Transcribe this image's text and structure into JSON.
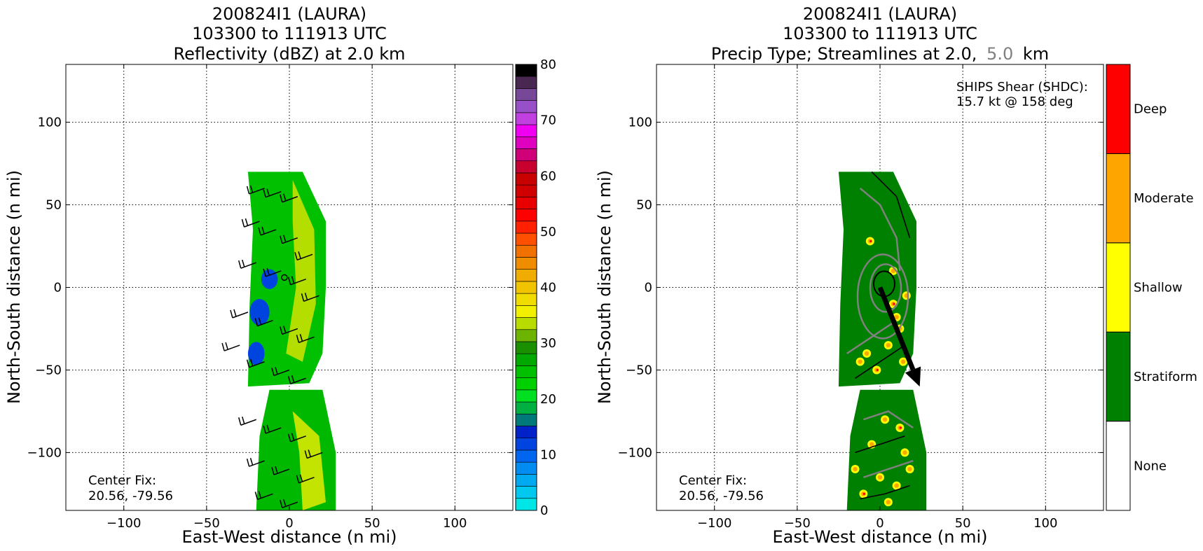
{
  "chart_data": [
    {
      "type": "heatmap",
      "title": [
        "200824I1 (LAURA)",
        "103300 to 111913 UTC",
        "Reflectivity (dBZ) at 2.0 km"
      ],
      "xlabel": "East-West distance (n mi)",
      "ylabel": "North-South distance (n mi)",
      "xlim": [
        -135,
        135
      ],
      "ylim": [
        -135,
        135
      ],
      "xticks": [
        -100,
        -50,
        0,
        50,
        100
      ],
      "yticks": [
        -100,
        -50,
        0,
        50,
        100
      ],
      "grid": true,
      "annotation": [
        "Center Fix:",
        "20.56, -79.56"
      ],
      "colorbar": {
        "label": "dBZ",
        "range": [
          0,
          80
        ],
        "ticks": [
          0,
          10,
          20,
          30,
          40,
          50,
          60,
          70,
          80
        ],
        "colors": [
          "#00e5e5",
          "#00c8ef",
          "#00aaf0",
          "#008cf0",
          "#0066f0",
          "#0044e0",
          "#0022c8",
          "#007a78",
          "#00b040",
          "#00e020",
          "#00d000",
          "#00c000",
          "#00a800",
          "#1a9000",
          "#6cb400",
          "#b8dc00",
          "#f0f000",
          "#f0dc00",
          "#f0c400",
          "#f0ac00",
          "#f08c00",
          "#f07000",
          "#ff5000",
          "#ff2000",
          "#ff0000",
          "#e80000",
          "#d00000",
          "#c80000",
          "#c80030",
          "#d00078",
          "#e000c0",
          "#f000f0",
          "#c040e0",
          "#9850c8",
          "#784898",
          "#482850",
          "#000000"
        ]
      },
      "echo": {
        "north_band": [
          [
            -25,
            70
          ],
          [
            8,
            70
          ],
          [
            22,
            40
          ],
          [
            22,
            0
          ],
          [
            20,
            -40
          ],
          [
            12,
            -58
          ],
          [
            -25,
            -60
          ],
          [
            -24,
            -10
          ],
          [
            -22,
            35
          ]
        ],
        "south_band": [
          [
            -12,
            -62
          ],
          [
            20,
            -62
          ],
          [
            28,
            -100
          ],
          [
            28,
            -135
          ],
          [
            -20,
            -135
          ],
          [
            -18,
            -90
          ]
        ],
        "yellow_core": [
          [
            2,
            65
          ],
          [
            15,
            35
          ],
          [
            16,
            -10
          ],
          [
            8,
            -45
          ],
          [
            -2,
            -40
          ],
          [
            4,
            0
          ],
          [
            2,
            40
          ]
        ],
        "yellow_south": [
          [
            2,
            -75
          ],
          [
            18,
            -90
          ],
          [
            22,
            -130
          ],
          [
            8,
            -135
          ],
          [
            6,
            -100
          ]
        ],
        "blue_patches": [
          [
            -18,
            -15,
            6,
            8
          ],
          [
            -12,
            5,
            5,
            6
          ],
          [
            -20,
            -40,
            5,
            7
          ]
        ]
      },
      "wind_barbs": [
        [
          -15,
          60
        ],
        [
          -5,
          58
        ],
        [
          5,
          55
        ],
        [
          -18,
          40
        ],
        [
          -8,
          35
        ],
        [
          5,
          30
        ],
        [
          14,
          20
        ],
        [
          -20,
          15
        ],
        [
          -5,
          10
        ],
        [
          10,
          5
        ],
        [
          18,
          -5
        ],
        [
          -25,
          -15
        ],
        [
          -10,
          -20
        ],
        [
          5,
          -25
        ],
        [
          15,
          -30
        ],
        [
          -30,
          -35
        ],
        [
          -15,
          -45
        ],
        [
          0,
          -50
        ],
        [
          10,
          -55
        ],
        [
          -20,
          -80
        ],
        [
          -5,
          -85
        ],
        [
          10,
          -90
        ],
        [
          20,
          -100
        ],
        [
          -15,
          -105
        ],
        [
          0,
          -110
        ],
        [
          15,
          -115
        ],
        [
          -10,
          -125
        ],
        [
          5,
          -130
        ]
      ],
      "center_marker": [
        -3,
        6
      ]
    },
    {
      "type": "heatmap",
      "title": [
        "200824I1 (LAURA)",
        "103300 to 111913 UTC",
        "Precip Type; Streamlines at 2.0,",
        "5.0",
        "km"
      ],
      "xlabel": "East-West distance (n mi)",
      "ylabel": "North-South distance (n mi)",
      "xlim": [
        -135,
        135
      ],
      "ylim": [
        -135,
        135
      ],
      "xticks": [
        -100,
        -50,
        0,
        50,
        100
      ],
      "yticks": [
        -100,
        -50,
        0,
        50,
        100
      ],
      "grid": true,
      "annotation": [
        "Center Fix:",
        "20.56, -79.56"
      ],
      "shear_text": [
        "SHIPS Shear (SHDC):",
        "15.7 kt @ 158 deg"
      ],
      "shear_vector": {
        "from": [
          0,
          0
        ],
        "to": [
          24,
          -60
        ]
      },
      "categories": [
        "None",
        "Stratiform",
        "Shallow",
        "Moderate",
        "Deep"
      ],
      "category_colors": [
        "#ffffff",
        "#008000",
        "#ffff00",
        "#ffa500",
        "#ff0000"
      ],
      "highlight_color": "#808080"
    }
  ]
}
